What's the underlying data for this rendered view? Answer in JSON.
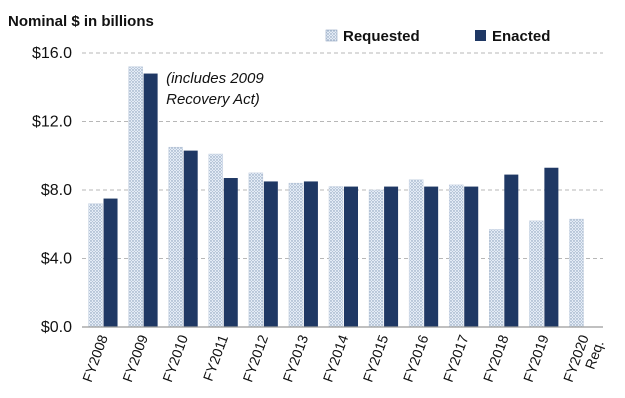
{
  "chart_data": {
    "type": "bar",
    "title": "",
    "ylabel": "Nominal $ in billions",
    "xlabel": "",
    "ylim": [
      0,
      16
    ],
    "yticks": [
      0,
      4,
      8,
      12,
      16
    ],
    "ytick_labels": [
      "$0.0",
      "$4.0",
      "$8.0",
      "$12.0",
      "$16.0"
    ],
    "grid": "horizontal dashed",
    "legend_position": "top-right",
    "categories": [
      "FY2008",
      "FY2009",
      "FY2010",
      "FY2011",
      "FY2012",
      "FY2013",
      "FY2014",
      "FY2015",
      "FY2016",
      "FY2017",
      "FY2018",
      "FY2019",
      "FY2020 Req."
    ],
    "series": [
      {
        "name": "Requested",
        "color": "#dce6f2",
        "pattern": "dotted",
        "values": [
          7.2,
          15.2,
          10.5,
          10.1,
          9.0,
          8.4,
          8.2,
          8.0,
          8.6,
          8.3,
          5.7,
          6.2,
          6.3
        ]
      },
      {
        "name": "Enacted",
        "color": "#1f3864",
        "pattern": "solid",
        "values": [
          7.5,
          14.8,
          10.3,
          8.7,
          8.5,
          8.5,
          8.2,
          8.2,
          8.2,
          8.2,
          8.9,
          9.3,
          null
        ]
      }
    ],
    "annotations": [
      {
        "text_lines": [
          "(includes 2009",
          "Recovery Act)"
        ],
        "category": "FY2009"
      }
    ]
  }
}
